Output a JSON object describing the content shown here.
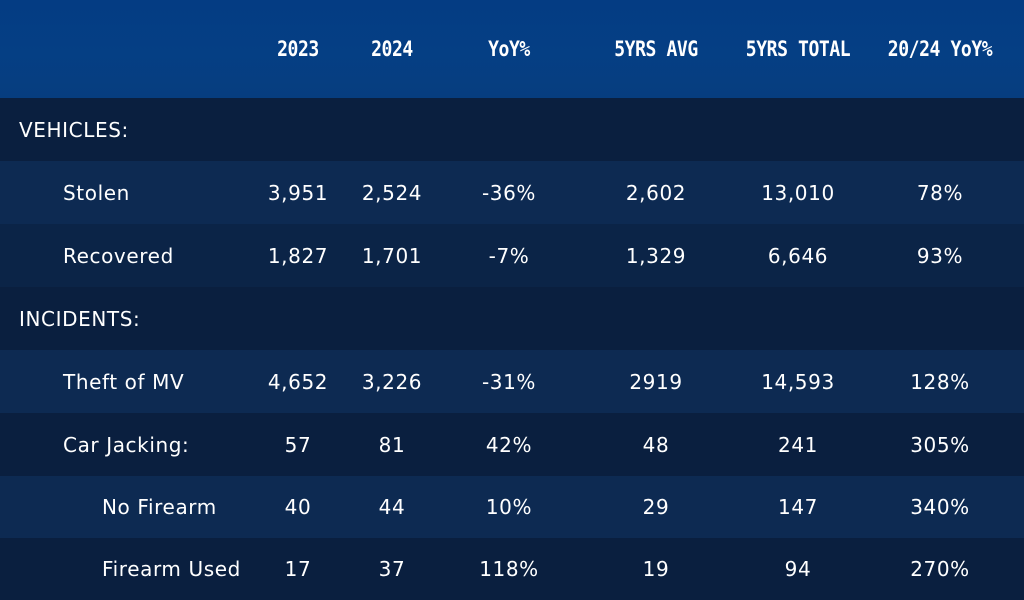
{
  "header": {
    "columns": [
      "2023",
      "2024",
      "YoY%",
      "5YRS AVG",
      "5YRS TOTAL",
      "20/24 YoY%"
    ]
  },
  "rows": [
    {
      "label": "VEHICLES:",
      "indent": 0,
      "values": [
        "",
        "",
        "",
        "",
        "",
        ""
      ]
    },
    {
      "label": "Stolen",
      "indent": 1,
      "values": [
        "3,951",
        "2,524",
        "-36%",
        "2,602",
        "13,010",
        "78%"
      ]
    },
    {
      "label": "Recovered",
      "indent": 1,
      "values": [
        "1,827",
        "1,701",
        "-7%",
        "1,329",
        "6,646",
        "93%"
      ]
    },
    {
      "label": "INCIDENTS:",
      "indent": 0,
      "values": [
        "",
        "",
        "",
        "",
        "",
        ""
      ]
    },
    {
      "label": "Theft of MV",
      "indent": 1,
      "values": [
        "4,652",
        "3,226",
        "-31%",
        "2919",
        "14,593",
        "128%"
      ]
    },
    {
      "label": "Car Jacking:",
      "indent": 1,
      "values": [
        "57",
        "81",
        "42%",
        "48",
        "241",
        "305%"
      ]
    },
    {
      "label": "No Firearm",
      "indent": 2,
      "values": [
        "40",
        "44",
        "10%",
        "29",
        "147",
        "340%"
      ]
    },
    {
      "label": "Firearm Used",
      "indent": 2,
      "values": [
        "17",
        "37",
        "118%",
        "19",
        "94",
        "270%"
      ]
    }
  ],
  "colors": {
    "header_bg": "#043c83",
    "row_dark": "#0a1f3f",
    "row_light": "#0d2a52",
    "text": "#ffffff"
  }
}
